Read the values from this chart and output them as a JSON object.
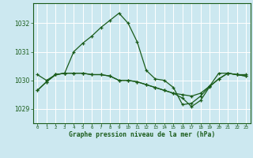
{
  "bg_color": "#cce8f0",
  "grid_color": "#ffffff",
  "line_color": "#1a5c1a",
  "xlabel": "Graphe pression niveau de la mer (hPa)",
  "ylim": [
    1028.5,
    1032.7
  ],
  "yticks": [
    1029,
    1030,
    1031,
    1032
  ],
  "xticks": [
    0,
    1,
    2,
    3,
    4,
    5,
    6,
    7,
    8,
    9,
    10,
    11,
    12,
    13,
    14,
    15,
    16,
    17,
    18,
    19,
    20,
    21,
    22,
    23
  ],
  "series": [
    [
      1029.65,
      1029.95,
      1030.2,
      1030.25,
      1031.0,
      1031.3,
      1031.55,
      1031.85,
      1032.1,
      1032.35,
      1032.0,
      1031.35,
      1030.35,
      1030.05,
      1030.0,
      1029.75,
      1029.15,
      1029.2,
      1029.45,
      1029.8,
      1030.25,
      1030.25,
      1030.2,
      1030.2
    ],
    [
      1030.2,
      1030.0,
      1030.2,
      1030.25,
      1030.25,
      1030.25,
      1030.2,
      1030.2,
      1030.15,
      1030.0,
      1030.0,
      1029.95,
      1029.85,
      1029.75,
      1029.65,
      1029.55,
      1029.5,
      1029.45,
      1029.55,
      1029.8,
      1030.05,
      1030.25,
      1030.2,
      1030.15
    ],
    [
      1029.65,
      1029.95,
      1030.2,
      1030.25,
      1030.25,
      1030.25,
      1030.2,
      1030.2,
      1030.15,
      1030.0,
      1030.0,
      1029.95,
      1029.85,
      1029.75,
      1029.65,
      1029.55,
      1029.38,
      1029.08,
      1029.3,
      1029.78,
      1030.05,
      1030.25,
      1030.2,
      1030.15
    ]
  ]
}
